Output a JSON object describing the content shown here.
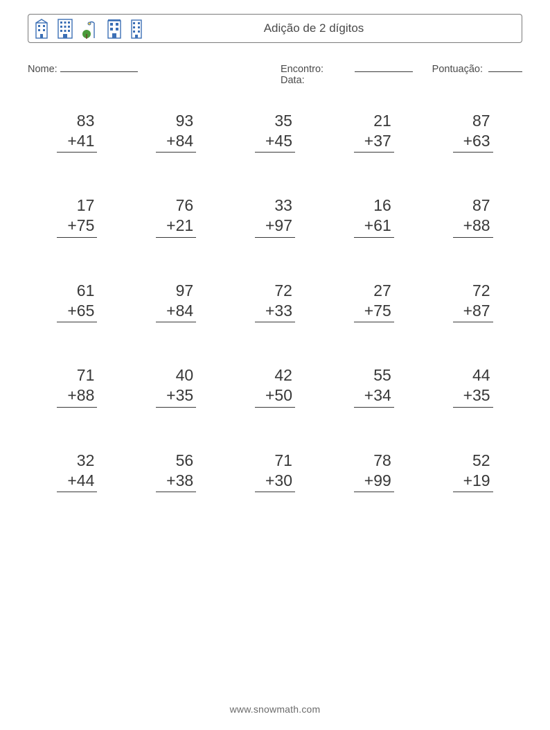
{
  "header": {
    "title": "Adição de 2 dígitos",
    "icon_color": "#3b6fb5",
    "tree_color": "#4a9a3a",
    "lamp_color": "#3b6fb5"
  },
  "meta": {
    "name_label": "Nome:",
    "encounter_label": "Encontro: Data:",
    "score_label": "Pontuação:",
    "name_blank_width": 112,
    "date_blank_width": 86,
    "score_blank_width": 50
  },
  "operator": "+",
  "problems": [
    {
      "a": 83,
      "b": 41
    },
    {
      "a": 93,
      "b": 84
    },
    {
      "a": 35,
      "b": 45
    },
    {
      "a": 21,
      "b": 37
    },
    {
      "a": 87,
      "b": 63
    },
    {
      "a": 17,
      "b": 75
    },
    {
      "a": 76,
      "b": 21
    },
    {
      "a": 33,
      "b": 97
    },
    {
      "a": 16,
      "b": 61
    },
    {
      "a": 87,
      "b": 88
    },
    {
      "a": 61,
      "b": 65
    },
    {
      "a": 97,
      "b": 84
    },
    {
      "a": 72,
      "b": 33
    },
    {
      "a": 27,
      "b": 75
    },
    {
      "a": 72,
      "b": 87
    },
    {
      "a": 71,
      "b": 88
    },
    {
      "a": 40,
      "b": 35
    },
    {
      "a": 42,
      "b": 50
    },
    {
      "a": 55,
      "b": 34
    },
    {
      "a": 44,
      "b": 35
    },
    {
      "a": 32,
      "b": 44
    },
    {
      "a": 56,
      "b": 38
    },
    {
      "a": 71,
      "b": 30
    },
    {
      "a": 78,
      "b": 99
    },
    {
      "a": 52,
      "b": 19
    }
  ],
  "layout": {
    "columns": 5,
    "rows": 5,
    "problem_fontsize": 23,
    "row_gap": 62
  },
  "colors": {
    "text": "#3a3a3a",
    "border": "#7a7a7a",
    "rule": "#383838",
    "background": "#ffffff"
  },
  "footer": {
    "text": "www.snowmath.com"
  }
}
